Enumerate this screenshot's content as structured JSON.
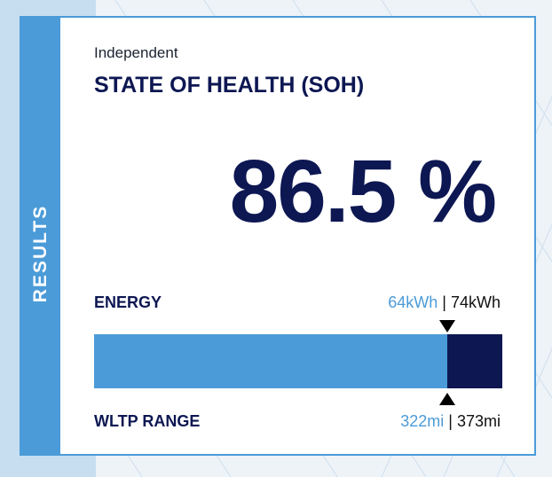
{
  "side_label": "RESULTS",
  "subtitle": "Independent",
  "title": "STATE OF HEALTH (SOH)",
  "soh_value": "86.5 %",
  "soh_fraction": 0.865,
  "energy": {
    "label": "ENERGY",
    "current": "64kWh",
    "separator": " | ",
    "nominal": "74kWh"
  },
  "range": {
    "label": "WLTP RANGE",
    "current": "322mi",
    "separator": " | ",
    "nominal": "373mi"
  },
  "colors": {
    "accent": "#4b9bd8",
    "navy": "#0d1752",
    "strip": "#c7def1"
  }
}
